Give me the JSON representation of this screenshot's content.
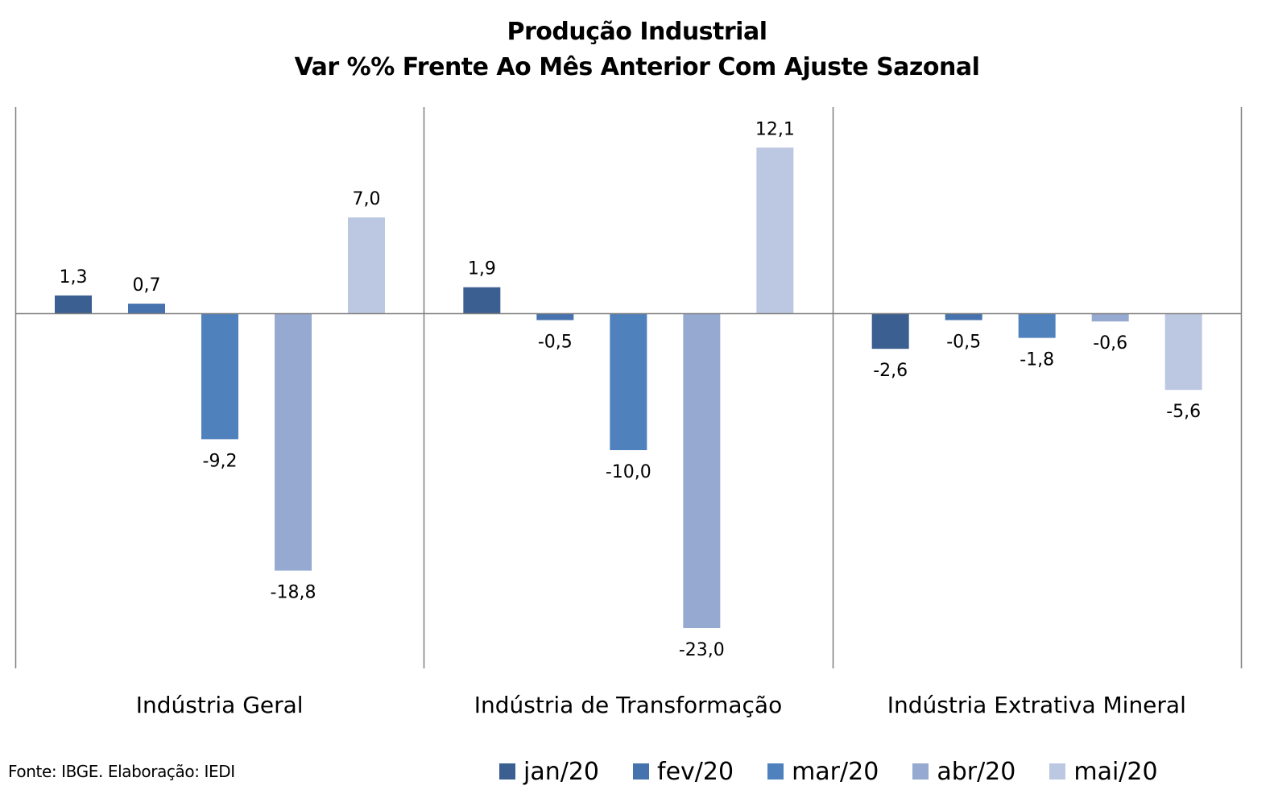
{
  "chart_data": {
    "type": "bar",
    "title": "Produção Industrial",
    "subtitle": "Var %% Frente Ao Mês Anterior Com Ajuste Sazonal",
    "categories": [
      "Indústria Geral",
      "Indústria de Transformação",
      "Indústria Extrativa Mineral"
    ],
    "series": [
      {
        "name": "jan/20",
        "color": "#3b5f91",
        "values": [
          1.3,
          1.9,
          -2.6
        ],
        "labels": [
          "1,3",
          "1,9",
          "-2,6"
        ]
      },
      {
        "name": "fev/20",
        "color": "#4672ae",
        "values": [
          0.7,
          -0.5,
          -0.5
        ],
        "labels": [
          "0,7",
          "-0,5",
          "-0,5"
        ]
      },
      {
        "name": "mar/20",
        "color": "#4f81bd",
        "values": [
          -9.2,
          -10.0,
          -1.8
        ],
        "labels": [
          "-9,2",
          "-10,0",
          "-1,8"
        ]
      },
      {
        "name": "abr/20",
        "color": "#95a9d1",
        "values": [
          -18.8,
          -23.0,
          -0.6
        ],
        "labels": [
          "-18,8",
          "-23,0",
          "-0,6"
        ]
      },
      {
        "name": "mai/20",
        "color": "#bcc8e1",
        "values": [
          7.0,
          12.1,
          -5.6
        ],
        "labels": [
          "7,0",
          "12,1",
          "-5,6"
        ]
      }
    ],
    "ylim": [
      -25.9,
      14.7
    ],
    "grid": false,
    "legend_position": "bottom-right",
    "category_separators": true
  },
  "source": "Fonte: IBGE. Elaboração: IEDI"
}
